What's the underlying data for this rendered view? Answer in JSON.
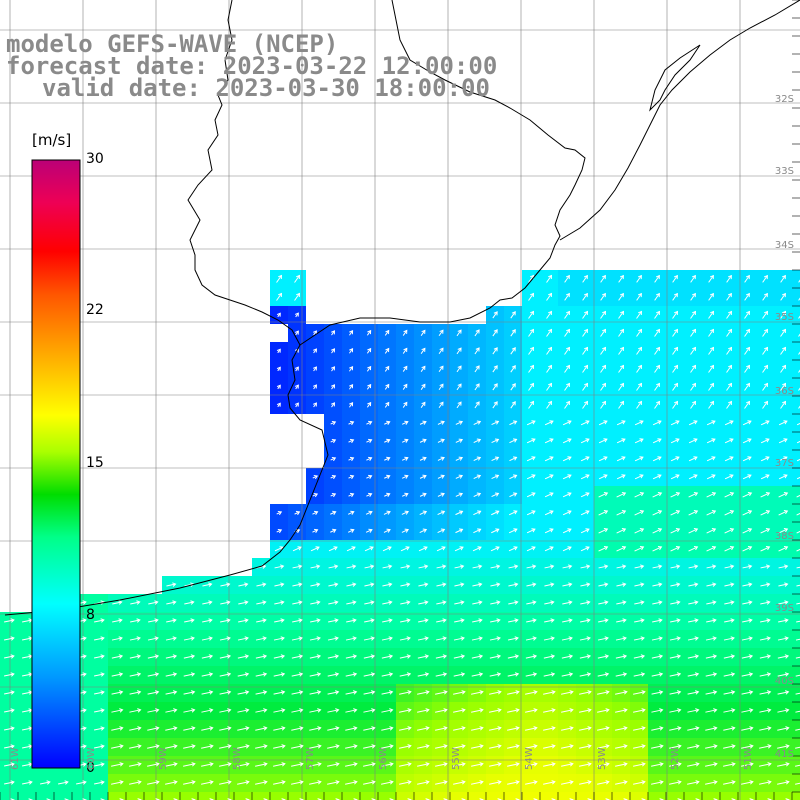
{
  "header": {
    "model_line": "modelo GEFS-WAVE (NCEP)",
    "forecast_line": "forecast date: 2023-03-22 12:00:00",
    "valid_line": "valid date: 2023-03-30 18:00:00"
  },
  "colorbar": {
    "unit": "[m/s]",
    "ticks": [
      {
        "label": "30",
        "value": 30
      },
      {
        "label": "22",
        "value": 22
      },
      {
        "label": "15",
        "value": 15
      },
      {
        "label": "8",
        "value": 8
      },
      {
        "label": "0",
        "value": 0
      }
    ],
    "min": 0,
    "max": 30,
    "colors": [
      "#0000ff",
      "#00aaff",
      "#00ffff",
      "#00ff80",
      "#00dd00",
      "#aaff00",
      "#ffff00",
      "#ffaa00",
      "#ff4400",
      "#ff0000",
      "#dd0066",
      "#bb0088"
    ]
  },
  "map": {
    "lat_labels": [
      "32S",
      "33S",
      "34S",
      "35S",
      "36S",
      "37S",
      "38S",
      "39S",
      "40S",
      "41S"
    ],
    "lon_labels": [
      "61W",
      "60W",
      "59W",
      "58W",
      "57W",
      "56W",
      "55W",
      "54W",
      "53W",
      "52W",
      "51W"
    ],
    "land_color": "#ffffff",
    "grid_color": "#808080",
    "arrow_color": "#ffffff",
    "wind_direction": "southwest-to-northeast",
    "wind_speed_bands": [
      {
        "region": "Rio de la Plata estuary",
        "speed": 2
      },
      {
        "region": "open ocean north",
        "speed": 8
      },
      {
        "region": "south shelf",
        "speed": 12
      },
      {
        "region": "southern band maximum",
        "speed": 16
      }
    ]
  }
}
